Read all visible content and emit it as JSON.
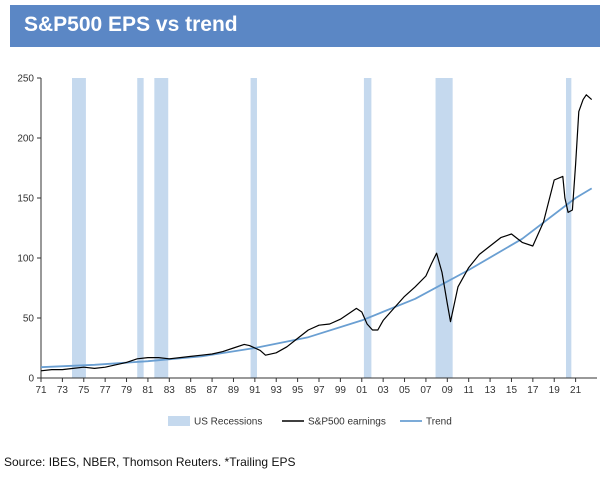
{
  "title": "S&P500 EPS vs trend",
  "source": "Source: IBES, NBER, Thomson Reuters. *Trailing EPS",
  "chart_data": {
    "type": "line",
    "title": "S&P500 EPS vs trend",
    "xlabel": "",
    "ylabel": "",
    "xlim": [
      1971,
      2023
    ],
    "ylim": [
      0,
      250
    ],
    "grid": false,
    "legend": "bottom",
    "x_ticks": [
      "71",
      "73",
      "75",
      "77",
      "79",
      "81",
      "83",
      "85",
      "87",
      "89",
      "91",
      "93",
      "95",
      "97",
      "99",
      "01",
      "03",
      "05",
      "07",
      "09",
      "11",
      "13",
      "15",
      "17",
      "19",
      "21"
    ],
    "y_ticks": [
      0,
      50,
      100,
      150,
      200,
      250
    ],
    "recessions": {
      "name": "US Recessions",
      "color": "#c5d9ee",
      "periods": [
        [
          1973.9,
          1975.2
        ],
        [
          1980.0,
          1980.6
        ],
        [
          1981.6,
          1982.9
        ],
        [
          1990.6,
          1991.2
        ],
        [
          2001.2,
          2001.9
        ],
        [
          2007.9,
          2009.5
        ],
        [
          2020.1,
          2020.6
        ]
      ]
    },
    "series": [
      {
        "name": "S&P500 earnings",
        "color": "#000000",
        "x": [
          1971,
          1972,
          1973,
          1974,
          1975,
          1976,
          1977,
          1978,
          1979,
          1980,
          1981,
          1982,
          1983,
          1984,
          1985,
          1986,
          1987,
          1988,
          1989,
          1990,
          1990.5,
          1991,
          1991.5,
          1992,
          1993,
          1994,
          1995,
          1996,
          1997,
          1998,
          1999,
          2000,
          2000.5,
          2001,
          2001.5,
          2002,
          2002.5,
          2003,
          2004,
          2005,
          2006,
          2007,
          2007.5,
          2008,
          2008.5,
          2009,
          2009.3,
          2010,
          2011,
          2012,
          2013,
          2014,
          2015,
          2016,
          2017,
          2018,
          2019,
          2019.8,
          2020,
          2020.3,
          2020.7,
          2021,
          2021.3,
          2021.7,
          2022,
          2022.5
        ],
        "values": [
          6,
          7,
          7,
          8,
          9,
          8,
          9,
          11,
          13,
          16,
          17,
          17,
          16,
          17,
          18,
          19,
          20,
          22,
          25,
          28,
          27,
          25,
          23,
          19,
          21,
          26,
          33,
          40,
          44,
          45,
          49,
          55,
          58,
          55,
          45,
          40,
          40,
          48,
          58,
          68,
          76,
          85,
          95,
          104,
          88,
          62,
          47,
          76,
          92,
          103,
          110,
          117,
          120,
          113,
          110,
          130,
          165,
          168,
          150,
          138,
          140,
          178,
          222,
          232,
          236,
          232
        ]
      },
      {
        "name": "Trend",
        "color": "#6a9fd2",
        "x": [
          1971,
          1976,
          1981,
          1986,
          1991,
          1996,
          2001,
          2006,
          2011,
          2016,
          2021,
          2022.5
        ],
        "values": [
          9,
          11,
          14,
          18,
          25,
          34,
          48,
          66,
          90,
          116,
          150,
          158
        ]
      }
    ]
  }
}
